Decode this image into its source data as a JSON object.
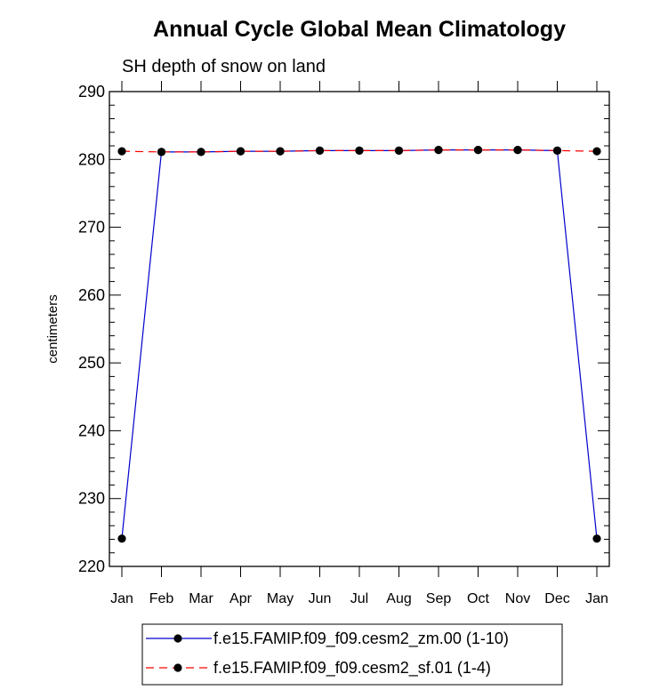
{
  "chart_data": {
    "type": "line",
    "title": "Annual Cycle Global Mean Climatology",
    "subtitle": "SH depth of snow on land",
    "xlabel": "",
    "ylabel": "centimeters",
    "ylim": [
      220,
      290
    ],
    "yticks": [
      220,
      230,
      240,
      250,
      260,
      270,
      280,
      290
    ],
    "categories": [
      "Jan",
      "Feb",
      "Mar",
      "Apr",
      "May",
      "Jun",
      "Jul",
      "Aug",
      "Sep",
      "Oct",
      "Nov",
      "Dec",
      "Jan"
    ],
    "grid": false,
    "legend_position": "bottom-center",
    "series": [
      {
        "name": "f.e15.FAMIP.f09_f09.cesm2_zm.00 (1-10)",
        "color": "#0000cc",
        "line_style": "solid",
        "marker": "filled-circle",
        "values": [
          224.1,
          281.1,
          281.1,
          281.2,
          281.2,
          281.3,
          281.3,
          281.3,
          281.4,
          281.4,
          281.4,
          281.3,
          224.1
        ]
      },
      {
        "name": "f.e15.FAMIP.f09_f09.cesm2_sf.01 (1-4)",
        "color": "#ff0000",
        "line_style": "dashed",
        "marker": "filled-circle",
        "values": [
          281.2,
          281.1,
          281.1,
          281.2,
          281.2,
          281.3,
          281.3,
          281.3,
          281.4,
          281.4,
          281.4,
          281.3,
          281.2
        ]
      }
    ]
  }
}
